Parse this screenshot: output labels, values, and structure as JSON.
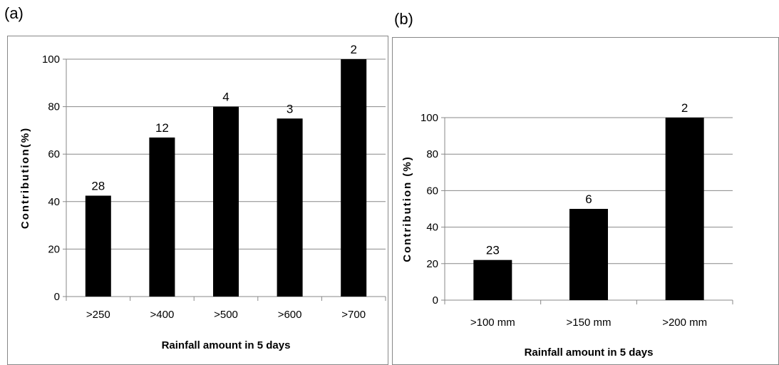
{
  "panels": {
    "a_label": "(a)",
    "b_label": "(b)"
  },
  "chart_data": [
    {
      "type": "bar",
      "panel": "(a)",
      "categories": [
        ">250",
        ">400",
        ">500",
        ">600",
        ">700"
      ],
      "values": [
        42.5,
        67,
        80,
        75,
        100
      ],
      "data_labels": [
        "28",
        "12",
        "4",
        "3",
        "2"
      ],
      "xlabel": "Rainfall amount in 5 days",
      "ylabel": "Contribution(%)",
      "ylim": [
        0,
        100
      ],
      "yticks": [
        0,
        20,
        40,
        60,
        80,
        100
      ],
      "grid": true,
      "bar_color": "#000000"
    },
    {
      "type": "bar",
      "panel": "(b)",
      "categories": [
        ">100 mm",
        ">150 mm",
        ">200 mm"
      ],
      "values": [
        22,
        50,
        100
      ],
      "data_labels": [
        "23",
        "6",
        "2"
      ],
      "xlabel": "Rainfall amount in 5 days",
      "ylabel": "Contribution (%)",
      "ylim": [
        0,
        100
      ],
      "yticks": [
        0,
        20,
        40,
        60,
        80,
        100
      ],
      "grid": true,
      "bar_color": "#000000"
    }
  ]
}
